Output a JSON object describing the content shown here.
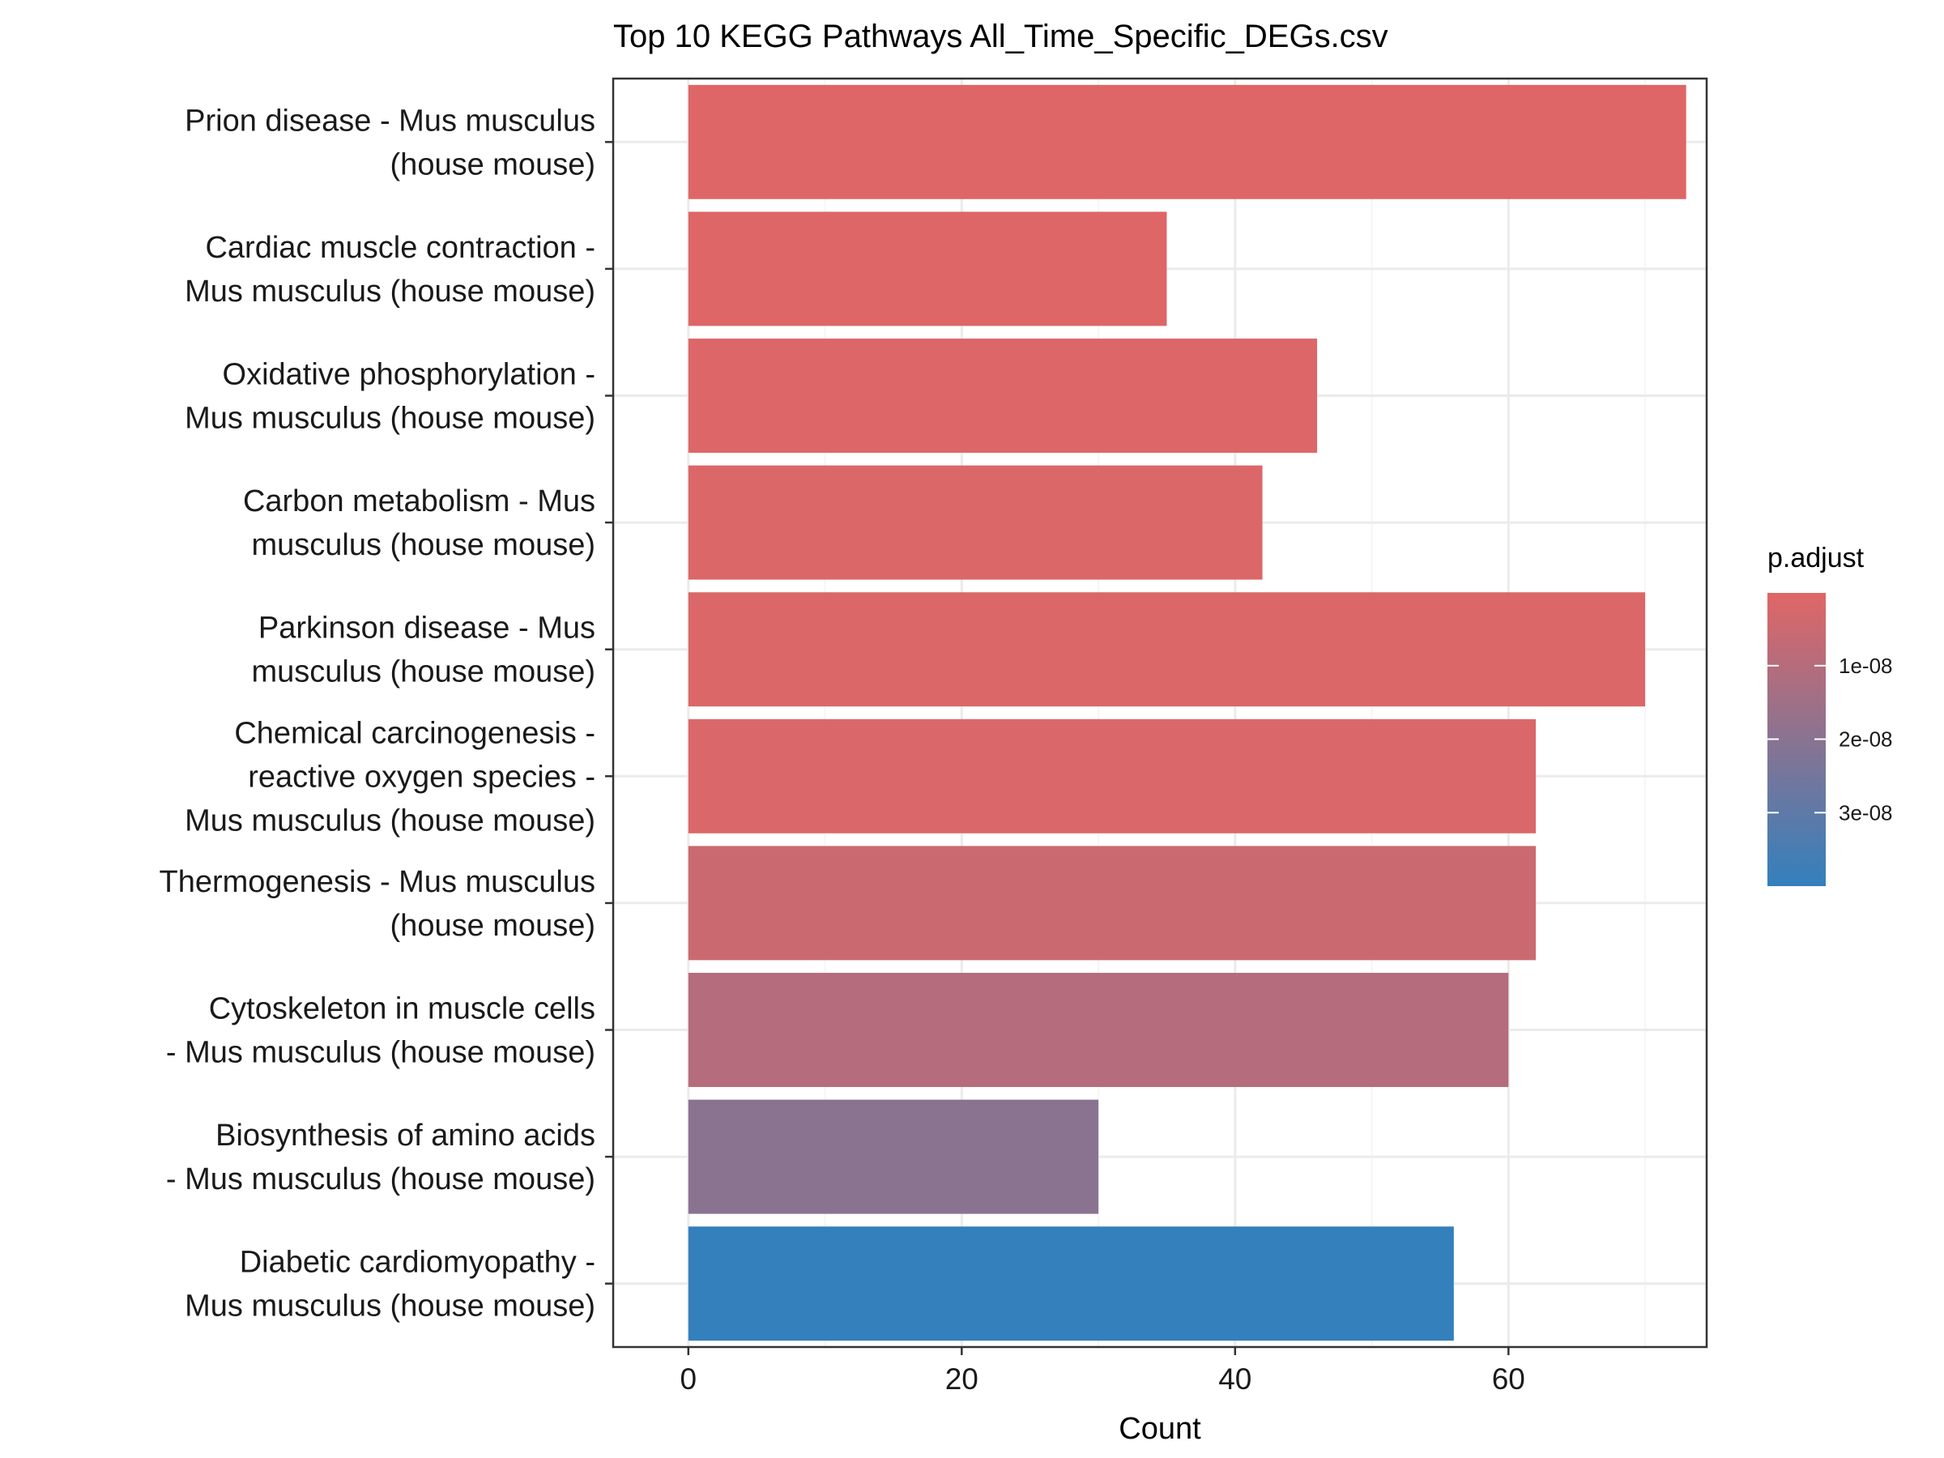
{
  "chart_data": {
    "type": "bar",
    "orientation": "horizontal",
    "title": "Top 10 KEGG Pathways All_Time_Specific_DEGs.csv",
    "xlabel": "Count",
    "ylabel": "",
    "xlim": [
      -5.5,
      74.5
    ],
    "xticks": [
      0,
      20,
      40,
      60
    ],
    "grid": true,
    "categories": [
      {
        "lines": [
          "Prion disease - Mus musculus",
          "(house mouse)"
        ],
        "value": 73,
        "p_adjust": 5e-10
      },
      {
        "lines": [
          "Cardiac muscle contraction -",
          "Mus musculus (house mouse)"
        ],
        "value": 35,
        "p_adjust": 6e-10
      },
      {
        "lines": [
          "Oxidative phosphorylation -",
          "Mus musculus (house mouse)"
        ],
        "value": 46,
        "p_adjust": 8e-10
      },
      {
        "lines": [
          "Carbon metabolism - Mus",
          "musculus (house mouse)"
        ],
        "value": 42,
        "p_adjust": 1e-09
      },
      {
        "lines": [
          "Parkinson disease - Mus",
          "musculus (house mouse)"
        ],
        "value": 70,
        "p_adjust": 1.2e-09
      },
      {
        "lines": [
          "Chemical carcinogenesis -",
          "reactive oxygen species -",
          "Mus musculus (house mouse)"
        ],
        "value": 62,
        "p_adjust": 1.5e-09
      },
      {
        "lines": [
          "Thermogenesis - Mus musculus",
          "(house mouse)"
        ],
        "value": 62,
        "p_adjust": 5e-09
      },
      {
        "lines": [
          "Cytoskeleton in muscle cells",
          "- Mus musculus (house mouse)"
        ],
        "value": 60,
        "p_adjust": 1e-08
      },
      {
        "lines": [
          "Biosynthesis of amino acids",
          "- Mus musculus (house mouse)"
        ],
        "value": 30,
        "p_adjust": 2e-08
      },
      {
        "lines": [
          "Diabetic cardiomyopathy -",
          "Mus musculus (house mouse)"
        ],
        "value": 56,
        "p_adjust": 4e-08
      }
    ],
    "legend": {
      "title": "p.adjust",
      "placement": "right",
      "range": [
        1e-10,
        4e-08
      ],
      "ticks": [
        {
          "value": 1e-08,
          "label": "1e-08"
        },
        {
          "value": 2e-08,
          "label": "2e-08"
        },
        {
          "value": 3e-08,
          "label": "3e-08"
        }
      ],
      "color_low": "#E06666",
      "color_high": "#3380BD"
    },
    "colors": {
      "panel_border": "#333333",
      "grid_major": "#EBEBEB",
      "grid_minor": "#F3F3F3",
      "tick": "#333333"
    }
  }
}
